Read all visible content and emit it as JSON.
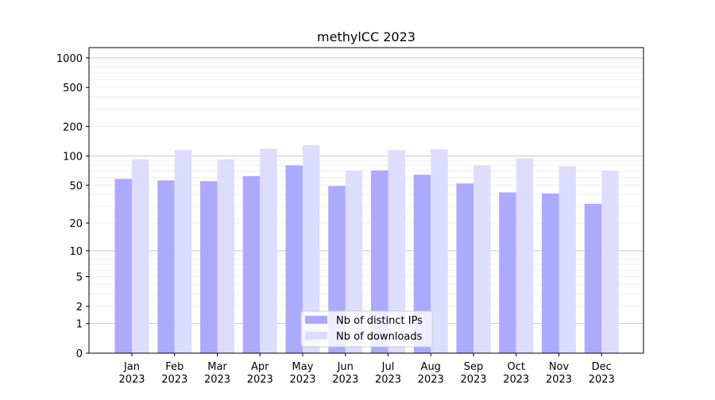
{
  "chart_data": {
    "type": "bar",
    "title": "methylCC 2023",
    "xlabel": "",
    "ylabel": "",
    "y_scale": "log(1+y)",
    "ylim": [
      0,
      1200
    ],
    "y_ticks": [
      0,
      1,
      2,
      5,
      10,
      20,
      50,
      100,
      200,
      500,
      1000
    ],
    "grid": "horizontal major and minor",
    "legend_position": "bottom-center",
    "categories": [
      "Jan\n2023",
      "Feb\n2023",
      "Mar\n2023",
      "Apr\n2023",
      "May\n2023",
      "Jun\n2023",
      "Jul\n2023",
      "Aug\n2023",
      "Sep\n2023",
      "Oct\n2023",
      "Nov\n2023",
      "Dec\n2023"
    ],
    "series": [
      {
        "name": "Nb of distinct IPs",
        "color": "#aaaaff",
        "values": [
          58,
          56,
          55,
          62,
          80,
          49,
          71,
          64,
          52,
          42,
          41,
          32
        ]
      },
      {
        "name": "Nb of downloads",
        "color": "#ddddff",
        "values": [
          92,
          115,
          92,
          119,
          129,
          71,
          115,
          117,
          80,
          94,
          78,
          71
        ]
      }
    ]
  }
}
